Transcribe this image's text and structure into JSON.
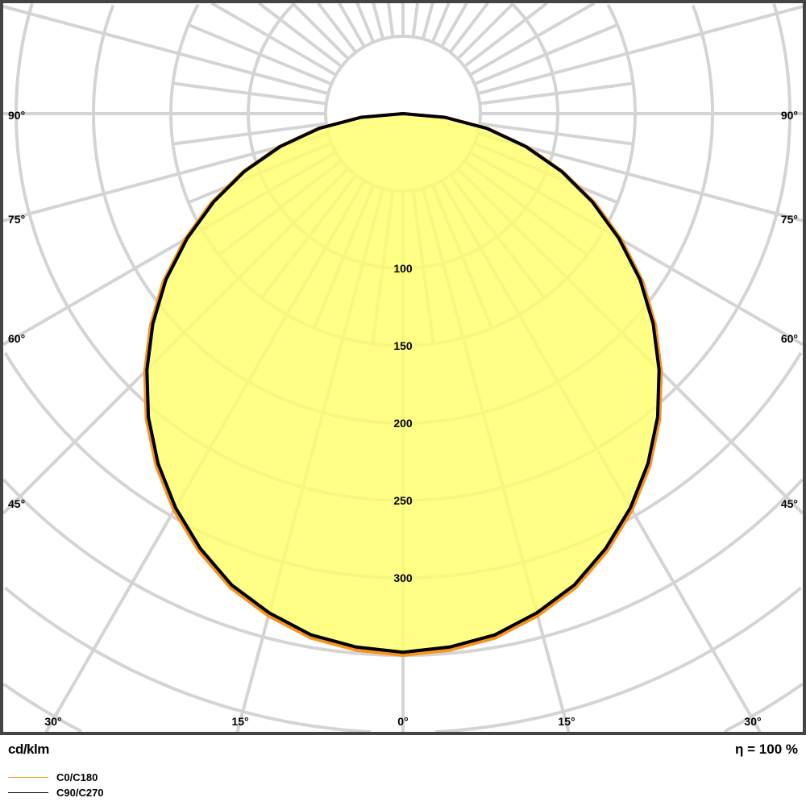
{
  "chart_data": {
    "type": "polar",
    "unit_label": "cd/klm",
    "efficiency_label": "η = 100 %",
    "radial_ticks": [
      100,
      150,
      200,
      250,
      300
    ],
    "radial_grid": [
      50,
      100,
      150,
      200,
      250,
      300,
      350,
      400,
      450,
      500
    ],
    "angle_labels_side": [
      "90°",
      "75°",
      "60°",
      "45°"
    ],
    "angle_labels_bottom": [
      "30°",
      "15°",
      "0°",
      "15°",
      "30°"
    ],
    "grid": true,
    "fill_color": "#ffff66",
    "angles": [
      0,
      5,
      10,
      15,
      20,
      25,
      30,
      35,
      40,
      45,
      50,
      55,
      60,
      65,
      70,
      75,
      80,
      85,
      90
    ],
    "series": [
      {
        "name": "C0/C180",
        "color": "#f7941d",
        "values": [
          350,
          348,
          344,
          336,
          326,
          312,
          296,
          278,
          258,
          236,
          213,
          189,
          163,
          137,
          110,
          83,
          56,
          28,
          0
        ]
      },
      {
        "name": "C90/C270",
        "color": "#000000",
        "values": [
          348,
          346,
          342,
          334,
          324,
          310,
          294,
          276,
          256,
          234,
          211,
          187,
          161,
          135,
          109,
          82,
          55,
          27,
          0
        ]
      }
    ]
  }
}
